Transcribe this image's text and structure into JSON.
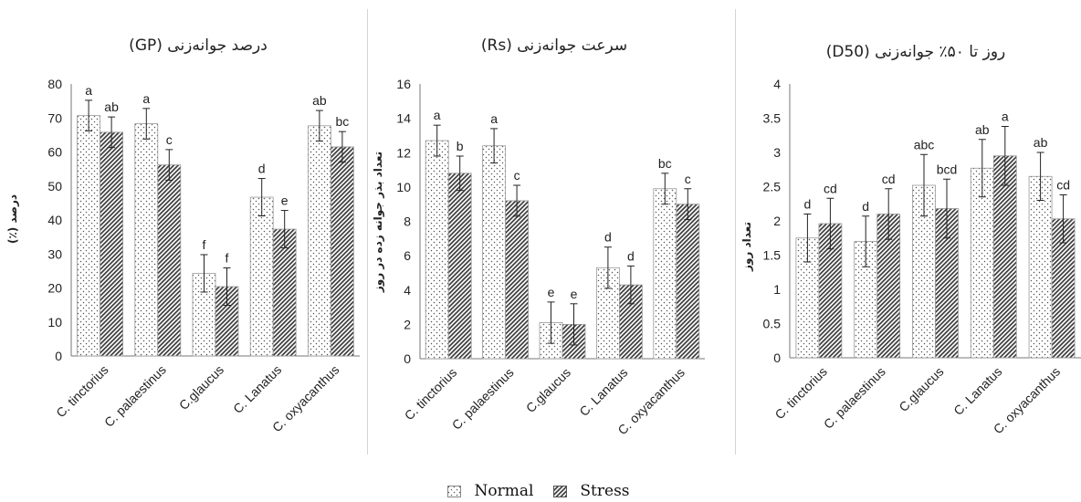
{
  "legend": {
    "normal_label": "Normal",
    "stress_label": "Stress"
  },
  "chart_data": [
    {
      "type": "bar",
      "title": "درصد جوانه‌زنی (GP)",
      "ylabel": "درصد (٪)",
      "ylim": [
        0,
        80
      ],
      "yticks": [
        0,
        10,
        20,
        30,
        40,
        50,
        60,
        70,
        80
      ],
      "categories": [
        "C. tinctorius",
        "C. palaestinus",
        "C.glaucus",
        "C. Lanatus",
        "C. oxyacanthus"
      ],
      "series": [
        {
          "name": "Normal",
          "values": [
            70.7,
            68.3,
            24.3,
            46.7,
            67.7
          ],
          "errors": [
            4.5,
            4.5,
            5.5,
            5.5,
            4.5
          ],
          "letters": [
            "a",
            "a",
            "f",
            "d",
            "ab"
          ]
        },
        {
          "name": "Stress",
          "values": [
            65.8,
            56.2,
            20.4,
            37.3,
            61.5
          ],
          "errors": [
            4.5,
            4.5,
            5.5,
            5.5,
            4.5
          ],
          "letters": [
            "ab",
            "c",
            "f",
            "e",
            "bc"
          ]
        }
      ],
      "grid": false
    },
    {
      "type": "bar",
      "title": "سرعت جوانه‌زنی (Rs)",
      "ylabel": "تعداد بذر جوانه زده در روز",
      "ylim": [
        0,
        16
      ],
      "yticks": [
        0,
        2,
        4,
        6,
        8,
        10,
        12,
        14,
        16
      ],
      "categories": [
        "C. tinctorius",
        "C. palaestinus",
        "C.glaucus",
        "C. Lanatus",
        "C. oxyacanthus"
      ],
      "series": [
        {
          "name": "Normal",
          "values": [
            12.7,
            12.4,
            2.1,
            5.3,
            9.9
          ],
          "errors": [
            0.9,
            1.0,
            1.2,
            1.2,
            0.9
          ],
          "letters": [
            "a",
            "a",
            "e",
            "d",
            "bc"
          ]
        },
        {
          "name": "Stress",
          "values": [
            10.8,
            9.2,
            2.0,
            4.3,
            9.0
          ],
          "errors": [
            1.0,
            0.9,
            1.2,
            1.1,
            0.9
          ],
          "letters": [
            "b",
            "c",
            "e",
            "d",
            "c"
          ]
        }
      ],
      "grid": false
    },
    {
      "type": "bar",
      "title": "روز تا ۵۰٪ جوانه‌زنی (D50)",
      "ylabel": "تعداد روز",
      "ylim": [
        0,
        4
      ],
      "yticks": [
        "0",
        "0.5",
        "1",
        "1.5",
        "2",
        "2.5",
        "3",
        "3.5",
        "4"
      ],
      "categories": [
        "C. tinctorius",
        "C. palaestinus",
        "C.glaucus",
        "C. Lanatus",
        "C. oxyacanthus"
      ],
      "series": [
        {
          "name": "Normal",
          "values": [
            1.75,
            1.7,
            2.52,
            2.77,
            2.65
          ],
          "errors": [
            0.35,
            0.37,
            0.45,
            0.42,
            0.35
          ],
          "letters": [
            "d",
            "d",
            "abc",
            "ab",
            "ab"
          ]
        },
        {
          "name": "Stress",
          "values": [
            1.96,
            2.1,
            2.18,
            2.95,
            2.03
          ],
          "errors": [
            0.37,
            0.37,
            0.43,
            0.43,
            0.35
          ],
          "letters": [
            "cd",
            "cd",
            "bcd",
            "a",
            "cd"
          ]
        }
      ],
      "grid": false
    }
  ]
}
